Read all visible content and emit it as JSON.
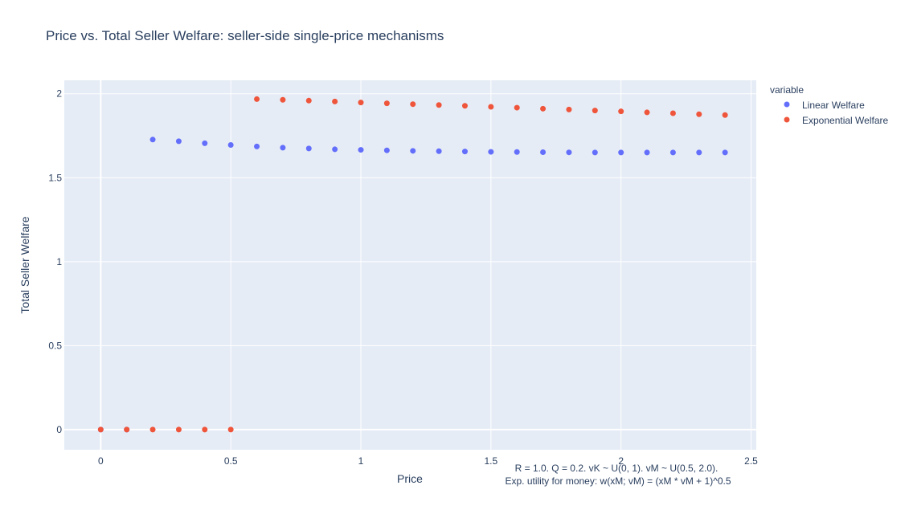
{
  "chart_data": {
    "type": "scatter",
    "title": "Price vs. Total Seller Welfare: seller-side single-price mechanisms",
    "xlabel": "Price",
    "ylabel": "Total Seller Welfare",
    "xlim": [
      -0.14,
      2.52
    ],
    "ylim": [
      -0.12,
      2.08
    ],
    "x_ticks": [
      0,
      0.5,
      1,
      1.5,
      2,
      2.5
    ],
    "x_tick_labels": [
      "0",
      "0.5",
      "1",
      "1.5",
      "2",
      "2.5"
    ],
    "y_ticks": [
      0,
      0.5,
      1,
      1.5,
      2
    ],
    "y_tick_labels": [
      "0",
      "0.5",
      "1",
      "1.5",
      "2"
    ],
    "legend_title": "variable",
    "legend_placement": "right",
    "grid": true,
    "x": [
      0,
      0.1,
      0.2,
      0.3,
      0.4,
      0.5,
      0.6,
      0.7,
      0.8,
      0.9,
      1.0,
      1.1,
      1.2,
      1.3,
      1.4,
      1.5,
      1.6,
      1.7,
      1.8,
      1.9,
      2.0,
      2.1,
      2.2,
      2.3,
      2.4
    ],
    "series": [
      {
        "name": "Linear Welfare",
        "color": "#636efa",
        "values": [
          0,
          0,
          1.727,
          1.717,
          1.705,
          1.695,
          1.686,
          1.679,
          1.674,
          1.669,
          1.666,
          1.663,
          1.66,
          1.658,
          1.656,
          1.654,
          1.653,
          1.652,
          1.651,
          1.65,
          1.65,
          1.65,
          1.65,
          1.65,
          1.65
        ]
      },
      {
        "name": "Exponential Welfare",
        "color": "#ef553b",
        "values": [
          0,
          0,
          0,
          0,
          0,
          0,
          1.968,
          1.964,
          1.959,
          1.954,
          1.948,
          1.943,
          1.938,
          1.933,
          1.928,
          1.922,
          1.917,
          1.911,
          1.906,
          1.9,
          1.895,
          1.889,
          1.884,
          1.878,
          1.873
        ]
      }
    ],
    "annotations": [
      "R = 1.0. Q = 0.2. vK ~ U(0, 1). vM ~ U(0.5, 2.0).",
      "Exp. utility for money: w(xM; vM) = (xM * vM + 1)^0.5"
    ]
  },
  "colors": {
    "plot_background": "#e5ecf6",
    "grid": "#ffffff",
    "text": "#2a3f5f"
  }
}
